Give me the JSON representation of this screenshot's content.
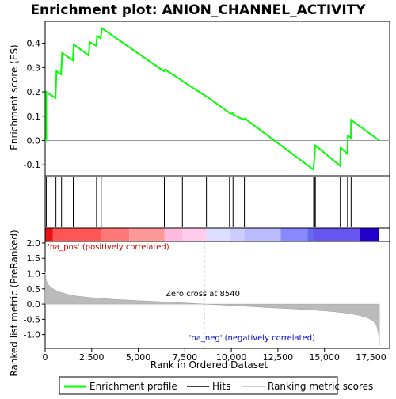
{
  "chart_data": {
    "type": "line",
    "title": "Enrichment plot: ANION_CHANNEL_ACTIVITY",
    "panels": {
      "enrichment": {
        "ylabel": "Enrichment score (ES)",
        "ylim": [
          -0.145,
          0.49
        ],
        "yticks": [
          -0.1,
          0.0,
          0.1,
          0.2,
          0.3,
          0.4
        ],
        "ytick_labels": [
          "-0.1",
          "0.0",
          "0.1",
          "0.2",
          "0.3",
          "0.4"
        ],
        "series": [
          {
            "name": "Enrichment profile",
            "color": "#00ff00",
            "x": [
              0,
              60,
              60,
              560,
              610,
              860,
              910,
              1490,
              1540,
              2340,
              2390,
              2740,
              2790,
              2990,
              3040,
              6380,
              6430,
              7350,
              7400,
              8640,
              8690,
              9880,
              9930,
              10070,
              10120,
              10680,
              10730,
              14410,
              14420,
              14460,
              14470,
              14500,
              14510,
              15840,
              15850,
              15860,
              15870,
              16230,
              16240,
              16250,
              16260,
              16420,
              16430,
              17950
            ],
            "y": [
              0.0,
              0.0,
              0.2,
              0.175,
              0.285,
              0.272,
              0.36,
              0.33,
              0.395,
              0.35,
              0.405,
              0.39,
              0.43,
              0.42,
              0.462,
              0.285,
              0.292,
              0.247,
              0.243,
              0.182,
              0.18,
              0.115,
              0.11,
              0.112,
              0.105,
              0.085,
              0.09,
              -0.12,
              -0.11,
              -0.07,
              -0.065,
              -0.025,
              -0.02,
              -0.105,
              -0.095,
              -0.04,
              -0.03,
              -0.055,
              -0.02,
              0.01,
              0.02,
              0.01,
              0.085,
              0.0
            ]
          }
        ]
      },
      "hits": {
        "positions": [
          60,
          580,
          880,
          1510,
          2360,
          2760,
          3010,
          6400,
          7370,
          8660,
          9900,
          10090,
          10700,
          14420,
          14470,
          14510,
          15850,
          15870,
          16240,
          16260,
          16430
        ]
      },
      "ranked_metric": {
        "ylabel": "Ranked list metric (PreRanked)",
        "ylim": [
          -1.45,
          2.05
        ],
        "yticks": [
          -1.0,
          -0.5,
          0.0,
          0.5,
          1.0,
          1.5,
          2.0
        ],
        "ytick_labels": [
          "-1.0",
          "-0.5",
          "0.0",
          "0.5",
          "1.0",
          "1.5",
          "2.0"
        ],
        "x": [
          0,
          50,
          150,
          300,
          500,
          800,
          1200,
          1700,
          2500,
          3500,
          5000,
          6500,
          8000,
          8540,
          9500,
          11000,
          12500,
          14000,
          15000,
          16000,
          16800,
          17300,
          17600,
          17800,
          17900,
          17950
        ],
        "values": [
          1.05,
          0.78,
          0.65,
          0.55,
          0.47,
          0.39,
          0.32,
          0.26,
          0.21,
          0.16,
          0.11,
          0.07,
          0.02,
          0.0,
          -0.03,
          -0.08,
          -0.13,
          -0.18,
          -0.22,
          -0.28,
          -0.36,
          -0.45,
          -0.55,
          -0.7,
          -0.95,
          -1.35
        ],
        "zero_cross_label": "Zero cross at 8540",
        "zero_cross_x": 8540,
        "pos_label": "'na_pos' (positively correlated)",
        "neg_label": "'na_neg' (negatively correlated)"
      }
    },
    "xaxis": {
      "label": "Rank in Ordered Dataset",
      "xlim": [
        0,
        18500
      ],
      "ticks": [
        0,
        2500,
        5000,
        7500,
        10000,
        12500,
        15000,
        17500
      ],
      "tick_labels": [
        "0",
        "2,500",
        "5,000",
        "7,500",
        "10,000",
        "12,500",
        "15,000",
        "17,500"
      ]
    },
    "colorbar": {
      "segments": [
        {
          "x0": 0,
          "x1": 420,
          "color": "#ee1111"
        },
        {
          "x0": 420,
          "x1": 2990,
          "color": "#ff5555"
        },
        {
          "x0": 2990,
          "x1": 4520,
          "color": "#ff7777"
        },
        {
          "x0": 4520,
          "x1": 6400,
          "color": "#ff9999"
        },
        {
          "x0": 6400,
          "x1": 7370,
          "color": "#ffbbdd"
        },
        {
          "x0": 7370,
          "x1": 8660,
          "color": "#ffccee"
        },
        {
          "x0": 8660,
          "x1": 9900,
          "color": "#ddddff"
        },
        {
          "x0": 9900,
          "x1": 10700,
          "color": "#ccccff"
        },
        {
          "x0": 10700,
          "x1": 12650,
          "color": "#bbbbff"
        },
        {
          "x0": 12650,
          "x1": 14090,
          "color": "#8888ff"
        },
        {
          "x0": 14090,
          "x1": 14420,
          "color": "#6666ee"
        },
        {
          "x0": 14420,
          "x1": 16900,
          "color": "#6655ee"
        },
        {
          "x0": 16900,
          "x1": 17950,
          "color": "#2200cc"
        }
      ]
    },
    "colors": {
      "profile": "#00ff00",
      "metric_fill": "#bbbbbb",
      "pos_label": "#cc0000",
      "neg_label": "#0000cc",
      "panel_border": "#000000"
    },
    "legend": {
      "placement": "bottom",
      "items": [
        {
          "label": "Enrichment profile",
          "style": "green-line"
        },
        {
          "label": "Hits",
          "style": "black-line"
        },
        {
          "label": "Ranking metric scores",
          "style": "gray-line"
        }
      ]
    }
  }
}
